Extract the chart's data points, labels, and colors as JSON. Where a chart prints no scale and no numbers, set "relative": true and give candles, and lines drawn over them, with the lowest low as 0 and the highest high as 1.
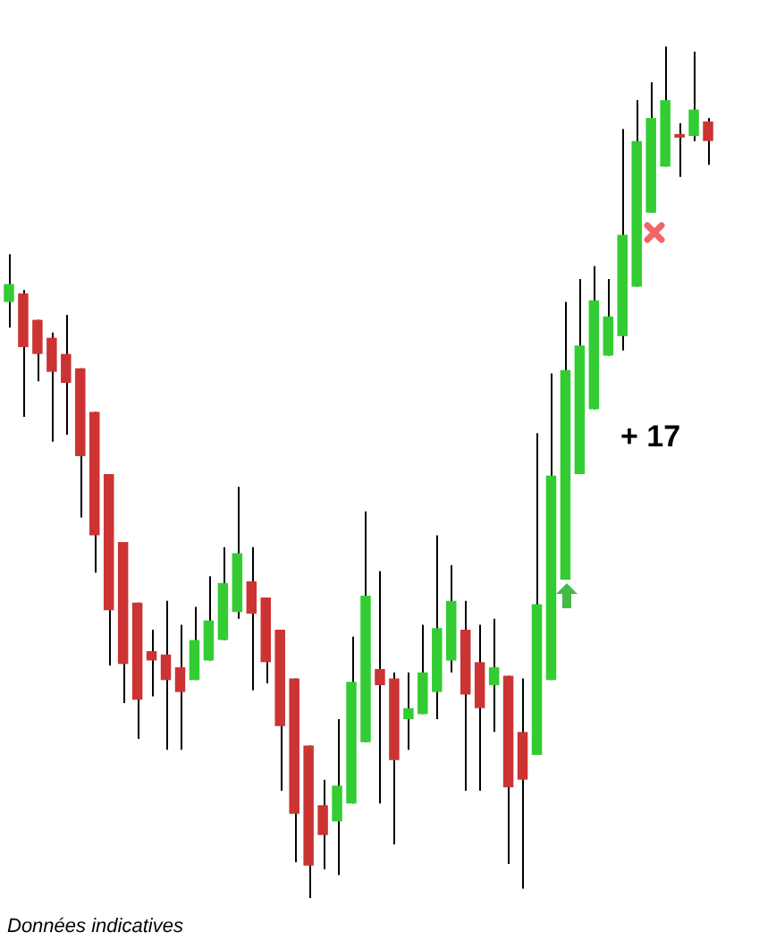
{
  "chart_data": {
    "type": "candlestick",
    "relative": true,
    "categories": [
      null,
      null,
      null,
      null,
      null,
      null,
      null,
      null,
      null,
      null,
      null,
      null,
      null,
      null,
      null,
      null,
      null,
      null,
      null,
      null,
      null,
      null,
      null,
      null,
      null,
      null,
      null,
      null,
      null,
      null,
      null,
      null,
      null,
      null,
      null,
      null,
      null,
      null,
      null,
      null,
      null,
      null,
      null,
      null,
      null,
      null,
      null,
      null,
      null,
      null
    ],
    "ohlc": [
      [
        0.7,
        0.756,
        0.67,
        0.721
      ],
      [
        0.71,
        0.714,
        0.565,
        0.647
      ],
      [
        0.679,
        0.679,
        0.607,
        0.639
      ],
      [
        0.658,
        0.664,
        0.536,
        0.618
      ],
      [
        0.639,
        0.685,
        0.544,
        0.605
      ],
      [
        0.622,
        0.622,
        0.447,
        0.519
      ],
      [
        0.571,
        0.571,
        0.382,
        0.426
      ],
      [
        0.498,
        0.498,
        0.273,
        0.338
      ],
      [
        0.418,
        0.418,
        0.229,
        0.275
      ],
      [
        0.347,
        0.347,
        0.187,
        0.233
      ],
      [
        0.29,
        0.315,
        0.237,
        0.279
      ],
      [
        0.286,
        0.349,
        0.174,
        0.256
      ],
      [
        0.271,
        0.321,
        0.174,
        0.242
      ],
      [
        0.256,
        0.342,
        0.256,
        0.303
      ],
      [
        0.279,
        0.378,
        0.279,
        0.326
      ],
      [
        0.303,
        0.412,
        0.303,
        0.37
      ],
      [
        0.336,
        0.483,
        0.328,
        0.405
      ],
      [
        0.372,
        0.412,
        0.244,
        0.334
      ],
      [
        0.353,
        0.353,
        0.252,
        0.277
      ],
      [
        0.315,
        0.315,
        0.126,
        0.202
      ],
      [
        0.258,
        0.258,
        0.042,
        0.099
      ],
      [
        0.179,
        0.179,
        0.0,
        0.038
      ],
      [
        0.109,
        0.139,
        0.034,
        0.074
      ],
      [
        0.09,
        0.21,
        0.027,
        0.132
      ],
      [
        0.111,
        0.307,
        0.111,
        0.254
      ],
      [
        0.183,
        0.454,
        0.183,
        0.355
      ],
      [
        0.269,
        0.384,
        0.111,
        0.25
      ],
      [
        0.258,
        0.265,
        0.063,
        0.162
      ],
      [
        0.21,
        0.265,
        0.174,
        0.223
      ],
      [
        0.216,
        0.321,
        0.216,
        0.265
      ],
      [
        0.242,
        0.426,
        0.21,
        0.317
      ],
      [
        0.279,
        0.391,
        0.265,
        0.349
      ],
      [
        0.315,
        0.349,
        0.126,
        0.239
      ],
      [
        0.277,
        0.321,
        0.126,
        0.223
      ],
      [
        0.25,
        0.328,
        0.195,
        0.271
      ],
      [
        0.261,
        0.261,
        0.04,
        0.13
      ],
      [
        0.195,
        0.258,
        0.011,
        0.139
      ],
      [
        0.168,
        0.546,
        0.168,
        0.345
      ],
      [
        0.256,
        0.616,
        0.256,
        0.496
      ],
      [
        0.374,
        0.7,
        0.374,
        0.62
      ],
      [
        0.498,
        0.727,
        0.498,
        0.649
      ],
      [
        0.574,
        0.742,
        0.574,
        0.702
      ],
      [
        0.637,
        0.727,
        0.637,
        0.683
      ],
      [
        0.66,
        0.903,
        0.643,
        0.779
      ],
      [
        0.718,
        0.937,
        0.718,
        0.889
      ],
      [
        0.805,
        0.958,
        0.805,
        0.916
      ],
      [
        0.859,
        1.0,
        0.859,
        0.937
      ],
      [
        0.897,
        0.91,
        0.847,
        0.893
      ],
      [
        0.895,
        0.994,
        0.889,
        0.926
      ],
      [
        0.912,
        0.916,
        0.861,
        0.889
      ]
    ],
    "colors": [
      "#33cc33",
      "#cc3333",
      "#cc3333",
      "#cc3333",
      "#cc3333",
      "#cc3333",
      "#cc3333",
      "#cc3333",
      "#cc3333",
      "#cc3333",
      "#cc3333",
      "#cc3333",
      "#cc3333",
      "#33cc33",
      "#33cc33",
      "#33cc33",
      "#33cc33",
      "#cc3333",
      "#cc3333",
      "#cc3333",
      "#cc3333",
      "#cc3333",
      "#cc3333",
      "#33cc33",
      "#33cc33",
      "#33cc33",
      "#cc3333",
      "#cc3333",
      "#33cc33",
      "#33cc33",
      "#33cc33",
      "#33cc33",
      "#cc3333",
      "#cc3333",
      "#33cc33",
      "#cc3333",
      "#cc3333",
      "#33cc33",
      "#33cc33",
      "#33cc33",
      "#33cc33",
      "#33cc33",
      "#33cc33",
      "#33cc33",
      "#33cc33",
      "#33cc33",
      "#33cc33",
      "#cc3333",
      "#33cc33",
      "#cc3333"
    ],
    "annotations": [
      "+ 17",
      "Données indicatives"
    ]
  }
}
